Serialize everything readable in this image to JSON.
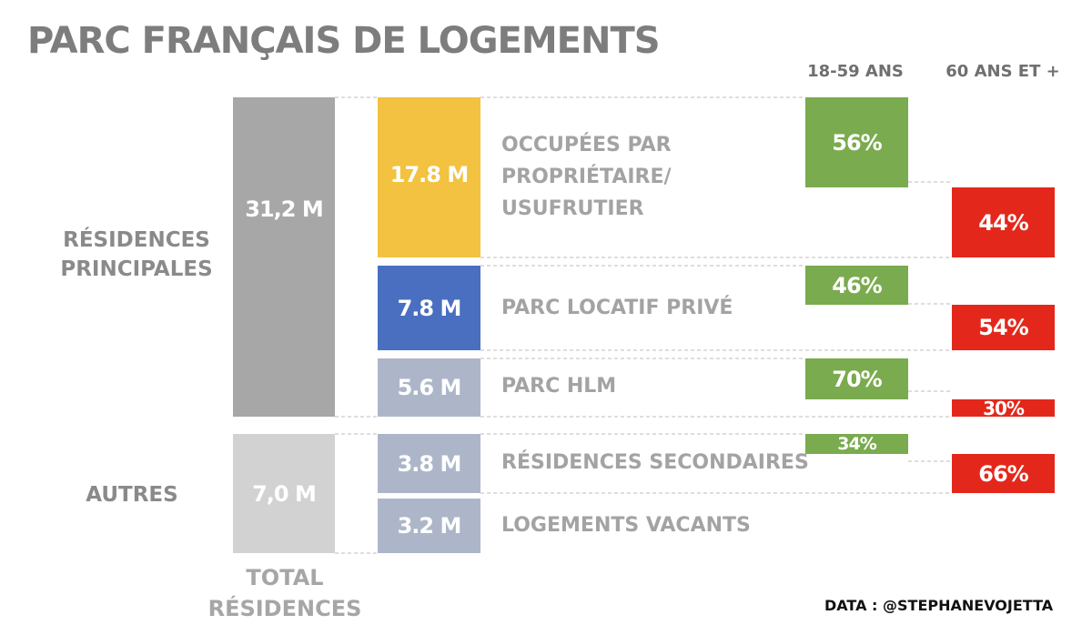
{
  "title": "PARC FRANÇAIS DE LOGEMENTS",
  "columns": {
    "young": "18-59 ANS",
    "old": "60 ANS ET +"
  },
  "groups": {
    "principal_line1": "RÉSIDENCES",
    "principal_line2": "PRINCIPALES",
    "others": "AUTRES"
  },
  "totals_label_line1": "TOTAL",
  "totals_label_line2": "RÉSIDENCES",
  "source": "DATA : @STEPHANEVOJETTA",
  "colors": {
    "total_principal": "#a8a7a7",
    "total_others": "#d2d2d2",
    "owner": "#f2c240",
    "private_rental": "#4a6fc0",
    "hlm": "#adb6c9",
    "secondary": "#adb6c9",
    "vacant": "#adb6c9",
    "young": "#7aab4f",
    "old": "#e3281b"
  },
  "chart_data": {
    "type": "bar",
    "title": "PARC FRANÇAIS DE LOGEMENTS",
    "totals": [
      {
        "group": "RÉSIDENCES PRINCIPALES",
        "label": "31,2 M",
        "value": 31.2
      },
      {
        "group": "AUTRES",
        "label": "7,0 M",
        "value": 7.0
      }
    ],
    "categories": [
      {
        "key": "owner",
        "line1": "OCCUPÉES PAR",
        "line2": "PROPRIÉTAIRE/",
        "line3": "USUFRUTIER",
        "label": "17.8 M",
        "value": 17.8,
        "young_pct": 56,
        "old_pct": 44,
        "young_label": "56%",
        "old_label": "44%"
      },
      {
        "key": "private_rental",
        "line1": "PARC LOCATIF PRIVÉ",
        "label": "7.8 M",
        "value": 7.8,
        "young_pct": 46,
        "old_pct": 54,
        "young_label": "46%",
        "old_label": "54%"
      },
      {
        "key": "hlm",
        "line1": "PARC HLM",
        "label": "5.6 M",
        "value": 5.6,
        "young_pct": 70,
        "old_pct": 30,
        "young_label": "70%",
        "old_label": "30%"
      },
      {
        "key": "secondary",
        "line1": "RÉSIDENCES SECONDAIRES",
        "label": "3.8 M",
        "value": 3.8,
        "young_pct": 34,
        "old_pct": 66,
        "young_label": "34%",
        "old_label": "66%"
      },
      {
        "key": "vacant",
        "line1": "LOGEMENTS VACANTS",
        "label": "3.2 M",
        "value": 3.2
      }
    ]
  }
}
